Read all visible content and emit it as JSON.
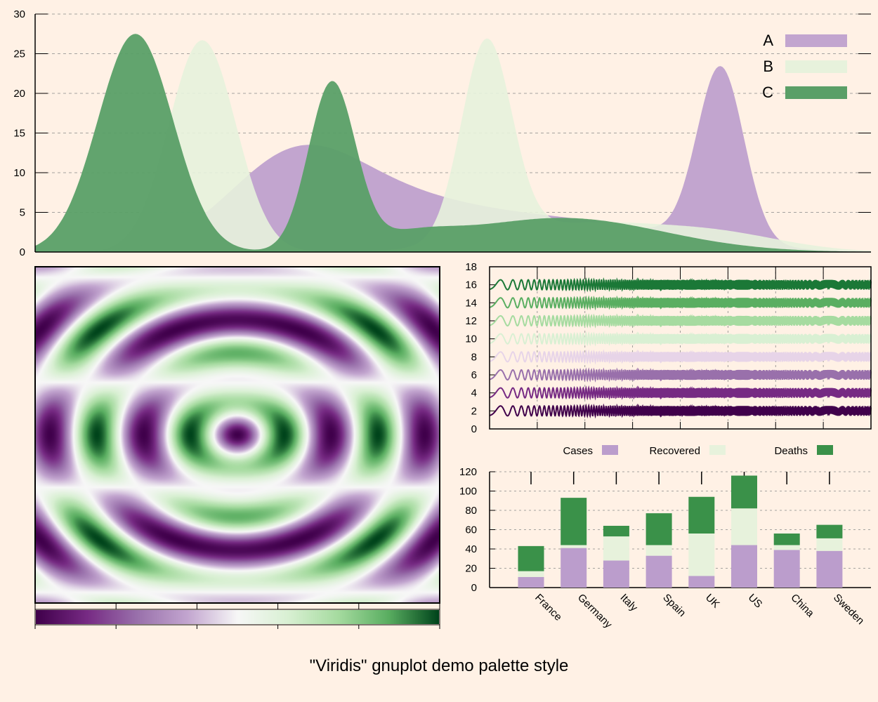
{
  "title": "\"Viridis\" gnuplot demo palette style",
  "colors": {
    "background": "#fff1e5",
    "A": "#c2a5cf",
    "B": "#e7f2dc",
    "C": "#5a9f67",
    "bar_cases": "#bb9dcc",
    "bar_recovered": "#e7f2dc",
    "bar_deaths": "#3a9149",
    "purple_dark": "#40004b",
    "green_dark": "#00441b"
  },
  "chart_data": [
    {
      "type": "area",
      "name": "peaks",
      "title": "",
      "xlabel": "",
      "ylabel": "",
      "x_range": [
        0,
        100
      ],
      "ylim": [
        0,
        30
      ],
      "y_ticks": [
        0,
        5,
        10,
        15,
        20,
        25,
        30
      ],
      "grid": true,
      "legend": "top-right",
      "series": [
        {
          "name": "A",
          "components": [
            {
              "amplitude": 11.5,
              "center": 31,
              "width": 8
            },
            {
              "amplitude": 4.0,
              "center": 44,
              "width": 9
            },
            {
              "amplitude": 4.0,
              "center": 62,
              "width": 14
            },
            {
              "amplitude": 22.0,
              "center": 82,
              "width": 2.8
            }
          ]
        },
        {
          "name": "B",
          "components": [
            {
              "amplitude": 26.7,
              "center": 20,
              "width": 4.0
            },
            {
              "amplitude": 25.0,
              "center": 54,
              "width": 3.0
            },
            {
              "amplitude": 3.5,
              "center": 65,
              "width": 10
            },
            {
              "amplitude": 2.0,
              "center": 82,
              "width": 8
            }
          ]
        },
        {
          "name": "C",
          "components": [
            {
              "amplitude": 27.5,
              "center": 12,
              "width": 4.5
            },
            {
              "amplitude": 21.0,
              "center": 35.5,
              "width": 2.8
            },
            {
              "amplitude": 4.3,
              "center": 63,
              "width": 12
            },
            {
              "amplitude": 1.5,
              "center": 45,
              "width": 5
            }
          ]
        }
      ]
    },
    {
      "type": "heatmap",
      "name": "rings",
      "title": "",
      "function": "sin(r) * sin(y) pattern",
      "x_range": [
        -10,
        10
      ],
      "y_range": [
        -10,
        10
      ],
      "color_range": [
        -1,
        1
      ],
      "colorbar": {
        "orientation": "horizontal",
        "position": "bottom",
        "tick_count": 6
      }
    },
    {
      "type": "line",
      "name": "waves",
      "title": "",
      "x_range": [
        0,
        100
      ],
      "ylim": [
        0,
        18
      ],
      "y_ticks": [
        0,
        2,
        4,
        6,
        8,
        10,
        12,
        14,
        16,
        18
      ],
      "grid": true,
      "series": [
        {
          "offset": 2,
          "color": "#40004b"
        },
        {
          "offset": 4,
          "color": "#762a83"
        },
        {
          "offset": 6,
          "color": "#9970ab"
        },
        {
          "offset": 8,
          "color": "#e7d4e8"
        },
        {
          "offset": 10,
          "color": "#d9f0d3"
        },
        {
          "offset": 12,
          "color": "#a6dba0"
        },
        {
          "offset": 14,
          "color": "#5aae61"
        },
        {
          "offset": 16,
          "color": "#1b7837"
        }
      ]
    },
    {
      "type": "bar",
      "name": "stacked",
      "stacked": true,
      "title": "",
      "categories": [
        "France",
        "Germany",
        "Italy",
        "Spain",
        "UK",
        "US",
        "China",
        "Sweden"
      ],
      "series": [
        {
          "name": "Cases",
          "values": [
            11,
            41,
            28,
            33,
            12,
            44,
            39,
            38
          ]
        },
        {
          "name": "Recovered",
          "values": [
            6,
            3,
            25,
            11,
            44,
            38,
            5,
            13
          ]
        },
        {
          "name": "Deaths",
          "values": [
            26,
            49,
            11,
            33,
            38,
            34,
            12,
            14
          ]
        }
      ],
      "ylim": [
        0,
        120
      ],
      "y_ticks": [
        0,
        20,
        40,
        60,
        80,
        100,
        120
      ],
      "grid": true,
      "legend": "top"
    }
  ]
}
